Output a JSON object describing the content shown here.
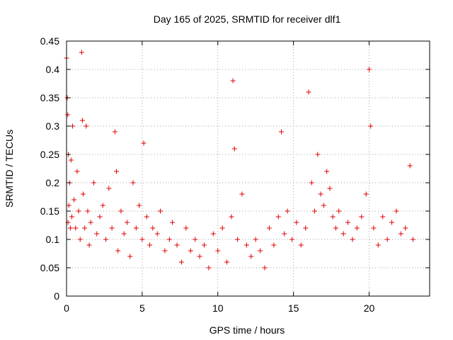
{
  "chart_data": {
    "type": "scatter",
    "title": "Day 165 of 2025, SRMTID for receiver dlf1",
    "xlabel": "GPS time / hours",
    "ylabel": "SRMTID / TECUs",
    "xlim": [
      0,
      24
    ],
    "ylim": [
      0,
      0.45
    ],
    "xticks": [
      0,
      5,
      10,
      15,
      20
    ],
    "xtick_labels": [
      "0",
      "5",
      "10",
      "15",
      "20"
    ],
    "yticks": [
      0,
      0.05,
      0.1,
      0.15,
      0.2,
      0.25,
      0.3,
      0.35,
      0.4,
      0.45
    ],
    "ytick_labels": [
      "0",
      "0.05",
      "0.1",
      "0.15",
      "0.2",
      "0.25",
      "0.3",
      "0.35",
      "0.4",
      "0.45"
    ],
    "marker": "+",
    "color": "#e00000",
    "grid": true,
    "series": [
      {
        "name": "SRMTID",
        "x": [
          0.0,
          0.05,
          0.08,
          0.1,
          0.12,
          0.15,
          0.2,
          0.25,
          0.3,
          0.35,
          0.4,
          0.5,
          0.6,
          0.7,
          0.8,
          0.9,
          1.0,
          1.05,
          1.1,
          1.2,
          1.3,
          1.4,
          1.5,
          1.6,
          1.8,
          2.0,
          2.2,
          2.4,
          2.6,
          2.8,
          3.0,
          3.2,
          3.3,
          3.4,
          3.6,
          3.8,
          4.0,
          4.2,
          4.4,
          4.6,
          4.8,
          5.0,
          5.1,
          5.3,
          5.5,
          5.7,
          6.0,
          6.2,
          6.5,
          6.8,
          7.0,
          7.3,
          7.6,
          7.9,
          8.2,
          8.5,
          8.8,
          9.1,
          9.4,
          9.7,
          10.0,
          10.3,
          10.6,
          10.9,
          11.0,
          11.1,
          11.3,
          11.6,
          11.9,
          12.2,
          12.5,
          12.8,
          13.1,
          13.4,
          13.7,
          14.0,
          14.2,
          14.4,
          14.6,
          14.9,
          15.2,
          15.5,
          15.8,
          16.0,
          16.2,
          16.4,
          16.6,
          16.8,
          17.0,
          17.2,
          17.4,
          17.6,
          17.8,
          18.0,
          18.3,
          18.6,
          18.9,
          19.2,
          19.5,
          19.8,
          20.0,
          20.1,
          20.3,
          20.6,
          20.9,
          21.2,
          21.5,
          21.8,
          22.1,
          22.4,
          22.7,
          22.9
        ],
        "y": [
          0.42,
          0.35,
          0.32,
          0.13,
          0.25,
          0.16,
          0.2,
          0.12,
          0.24,
          0.14,
          0.3,
          0.17,
          0.12,
          0.22,
          0.15,
          0.1,
          0.43,
          0.31,
          0.18,
          0.12,
          0.3,
          0.15,
          0.09,
          0.13,
          0.2,
          0.11,
          0.14,
          0.16,
          0.1,
          0.19,
          0.12,
          0.29,
          0.22,
          0.08,
          0.15,
          0.11,
          0.13,
          0.07,
          0.2,
          0.12,
          0.16,
          0.1,
          0.27,
          0.14,
          0.09,
          0.12,
          0.11,
          0.15,
          0.08,
          0.1,
          0.13,
          0.09,
          0.06,
          0.12,
          0.08,
          0.1,
          0.07,
          0.09,
          0.05,
          0.11,
          0.08,
          0.12,
          0.06,
          0.14,
          0.38,
          0.26,
          0.1,
          0.18,
          0.09,
          0.07,
          0.1,
          0.08,
          0.05,
          0.12,
          0.09,
          0.14,
          0.29,
          0.11,
          0.15,
          0.1,
          0.13,
          0.09,
          0.12,
          0.36,
          0.2,
          0.15,
          0.25,
          0.18,
          0.16,
          0.22,
          0.19,
          0.14,
          0.12,
          0.15,
          0.11,
          0.13,
          0.1,
          0.12,
          0.14,
          0.18,
          0.4,
          0.3,
          0.12,
          0.09,
          0.14,
          0.1,
          0.13,
          0.15,
          0.11,
          0.12,
          0.23,
          0.1
        ]
      }
    ]
  }
}
